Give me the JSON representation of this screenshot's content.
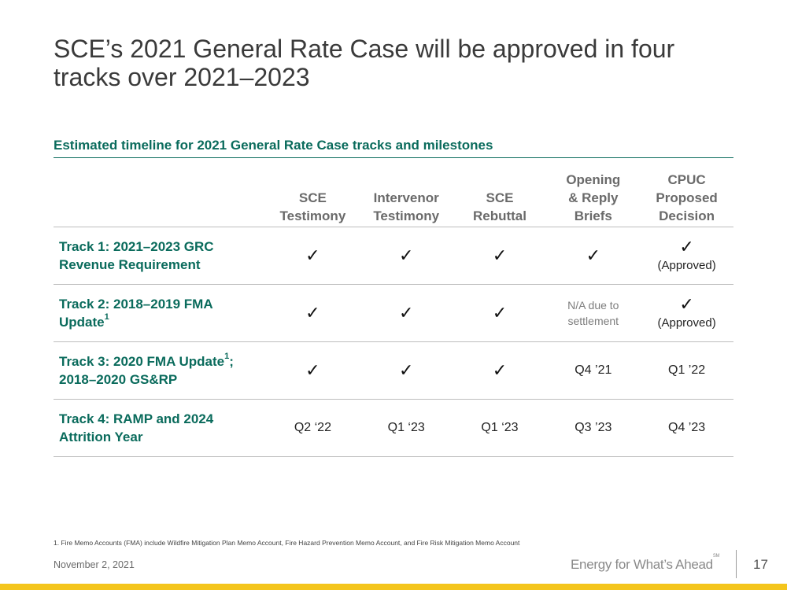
{
  "slide": {
    "title": "SCE’s 2021 General Rate Case will be approved in four tracks over 2021–2023",
    "subtitle": "Estimated timeline for 2021 General Rate Case tracks and milestones"
  },
  "table": {
    "columns": [
      "SCE Testimony",
      "Intervenor Testimony",
      "SCE Rebuttal",
      "Opening & Reply Briefs",
      "CPUC Proposed Decision"
    ],
    "column_lines": [
      [
        "SCE",
        "Testimony"
      ],
      [
        "Intervenor",
        "Testimony"
      ],
      [
        "SCE",
        "Rebuttal"
      ],
      [
        "Opening",
        "& Reply",
        "Briefs"
      ],
      [
        "CPUC",
        "Proposed",
        "Decision"
      ]
    ],
    "rows": [
      {
        "label_line1": "Track 1: 2021–2023 GRC",
        "label_line2": "Revenue Requirement",
        "check_glyph": "✓",
        "cells": [
          "✓",
          "✓",
          "✓",
          "✓"
        ],
        "decision_note": "(Approved)"
      },
      {
        "label_line1": "Track 2: 2018–2019 FMA",
        "label_line2": "Update",
        "label_sup": "1",
        "check_glyph": "✓",
        "cells": [
          "✓",
          "✓",
          "✓"
        ],
        "briefs_line1": "N/A due to",
        "briefs_line2": "settlement",
        "decision_note": "(Approved)"
      },
      {
        "label_line1": "Track 3: 2020 FMA Update",
        "label_sup": "1",
        "label_line1_tail": ";",
        "label_line2": "2018–2020 GS&RP",
        "cells": [
          "✓",
          "✓",
          "✓",
          "Q4 ’21",
          "Q1 ’22"
        ]
      },
      {
        "label_line1": "Track 4: RAMP and 2024",
        "label_line2": "Attrition Year",
        "cells": [
          "Q2 ‘22",
          "Q1 ‘23",
          "Q1 ‘23",
          "Q3 ’23",
          "Q4 ’23"
        ]
      }
    ]
  },
  "footnote": "1.  Fire Memo Accounts (FMA) include Wildfire Mitigation Plan Memo Account, Fire Hazard Prevention Memo Account, and Fire Risk Mitigation Memo Account",
  "footer": {
    "date": "November 2, 2021",
    "tagline": "Energy for What’s Ahead",
    "tagline_mark": "SM",
    "page_number": "17"
  },
  "colors": {
    "accent_green": "#0a6b5c",
    "header_gray": "#6a6a6a",
    "bottom_bar_yellow": "#f4c51c"
  }
}
